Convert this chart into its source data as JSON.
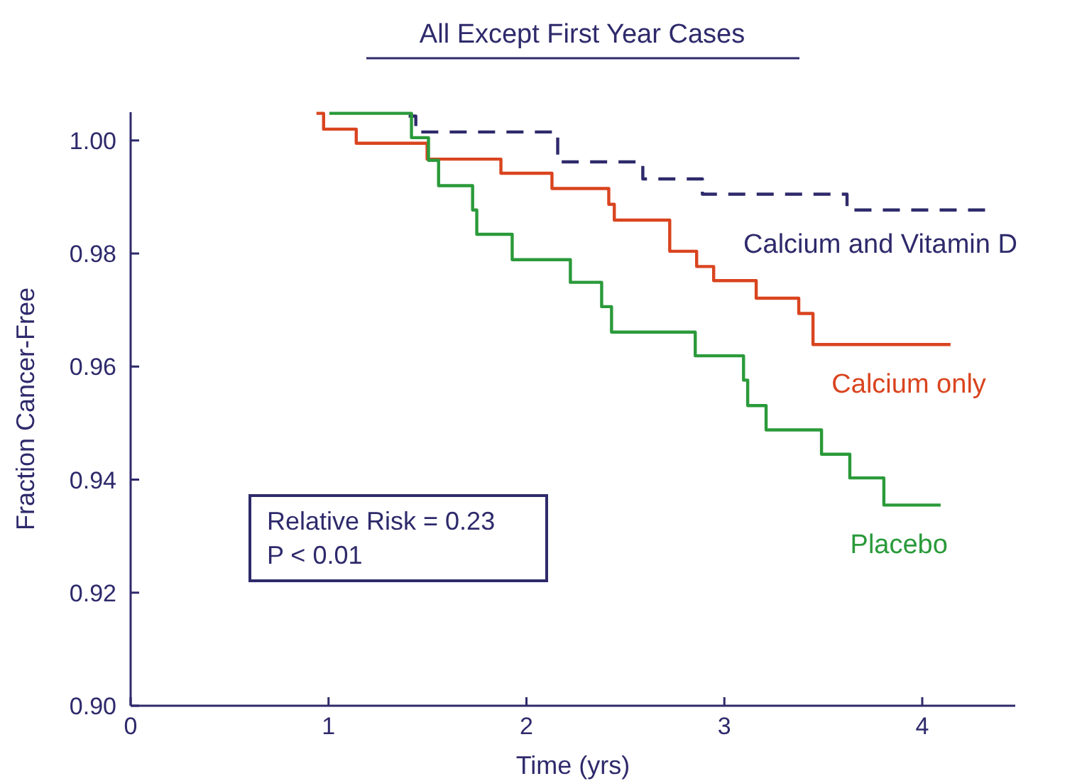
{
  "chart_data": {
    "type": "step",
    "title": "All Except First Year Cases",
    "xlabel": "Time (yrs)",
    "ylabel": "Fraction Cancer-Free",
    "xlim": [
      0,
      4.47
    ],
    "xticks": [
      0,
      1,
      2,
      3,
      4
    ],
    "ylim": [
      0.9,
      1.005
    ],
    "yticks": [
      {
        "value": 0.9,
        "label": "0.90"
      },
      {
        "value": 0.92,
        "label": "0.92"
      },
      {
        "value": 0.94,
        "label": "0.94"
      },
      {
        "value": 0.96,
        "label": "0.96"
      },
      {
        "value": 0.98,
        "label": "0.98"
      },
      {
        "value": 1.0,
        "label": "1.00"
      }
    ],
    "grid": false,
    "annotations": [
      "Relative Risk = 0.23",
      "P < 0.01"
    ],
    "series": [
      {
        "name": "Calcium and Vitamin D",
        "color": "#2e2a6b",
        "line_style": "dashed",
        "x": [
          1.405,
          1.441,
          2.158,
          2.588,
          2.889,
          3.62,
          4.337
        ],
        "values": [
          1.0043,
          1.0015,
          0.9962,
          0.9932,
          0.9905,
          0.9877,
          0.9877
        ]
      },
      {
        "name": "Calcium only",
        "color": "#d9441f",
        "line_style": "solid",
        "x": [
          0.939,
          0.975,
          1.14,
          1.498,
          1.871,
          2.129,
          2.416,
          2.444,
          2.724,
          2.86,
          2.946,
          3.161,
          3.376,
          3.448,
          4.143
        ],
        "values": [
          1.0048,
          1.002,
          0.9995,
          0.9967,
          0.9942,
          0.9915,
          0.9887,
          0.9859,
          0.9804,
          0.9777,
          0.9752,
          0.9721,
          0.9694,
          0.9639,
          0.9639
        ]
      },
      {
        "name": "Placebo",
        "color": "#2a9a3a",
        "line_style": "solid",
        "x": [
          1.004,
          1.419,
          1.505,
          1.556,
          1.728,
          1.749,
          1.928,
          2.222,
          2.38,
          2.43,
          2.853,
          3.097,
          3.118,
          3.211,
          3.491,
          3.634,
          3.806,
          4.093
        ],
        "values": [
          1.0048,
          1.0005,
          0.9965,
          0.992,
          0.9877,
          0.9834,
          0.9789,
          0.9749,
          0.9706,
          0.9661,
          0.9619,
          0.9576,
          0.9531,
          0.9488,
          0.9445,
          0.9403,
          0.9355,
          0.9355
        ]
      }
    ]
  }
}
